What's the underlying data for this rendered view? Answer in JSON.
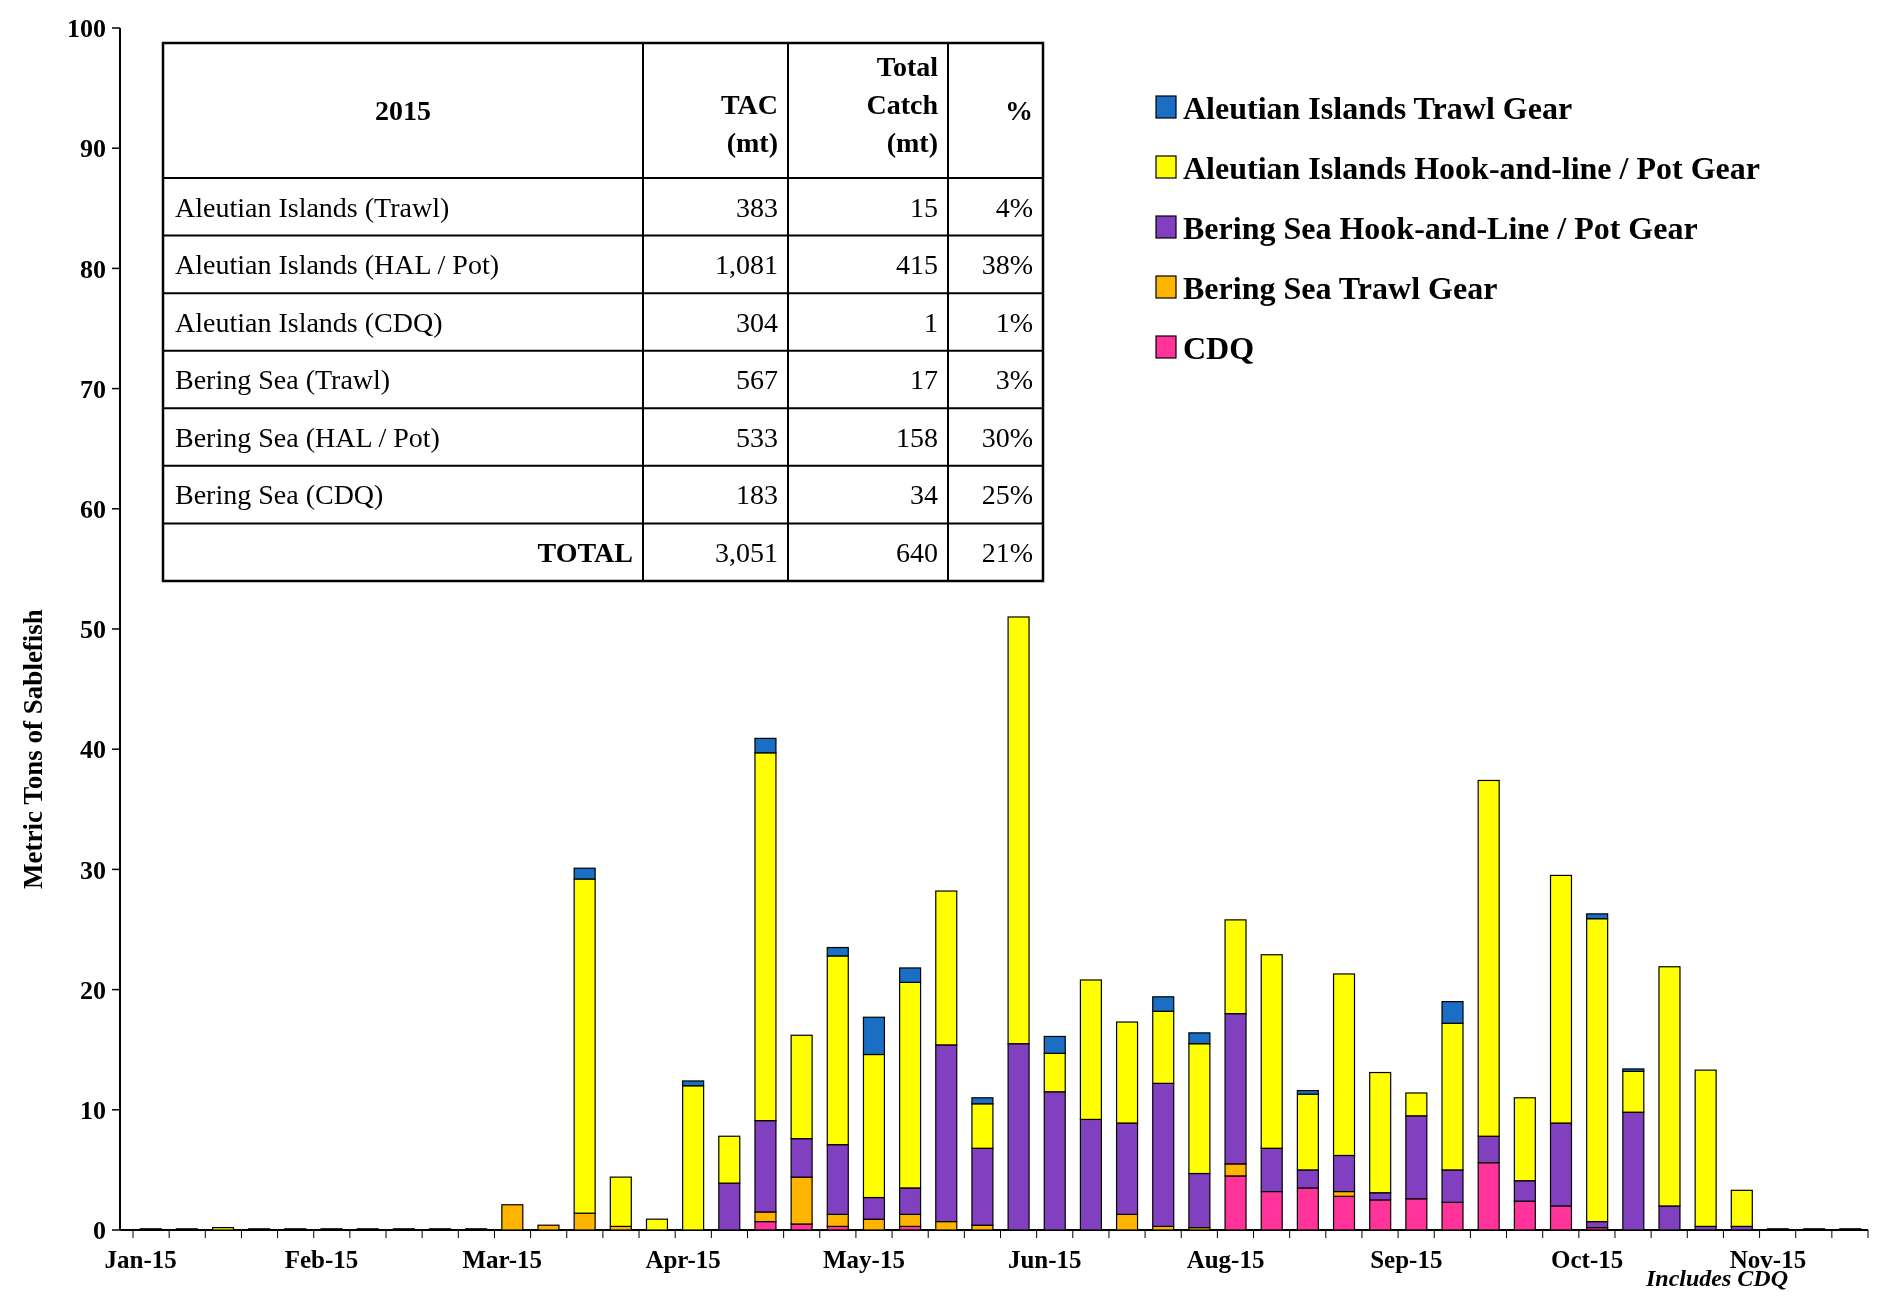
{
  "chart_data": [
    {
      "type": "bar",
      "stacked": true,
      "ylabel": "Metric Tons of Sablefish",
      "ylim": [
        0,
        100
      ],
      "yticks": [
        0,
        10,
        20,
        30,
        40,
        50,
        60,
        70,
        80,
        90,
        100
      ],
      "legend": "top right",
      "annotations": [
        "Includes CDQ"
      ],
      "categories": [
        "Jan-15",
        null,
        null,
        null,
        null,
        "Feb-15",
        null,
        null,
        null,
        null,
        "Mar-15",
        null,
        null,
        null,
        null,
        "Apr-15",
        null,
        null,
        null,
        null,
        "May-15",
        null,
        null,
        null,
        null,
        "Jun-15",
        null,
        null,
        null,
        null,
        "Aug-15",
        null,
        null,
        null,
        null,
        "Sep-15",
        null,
        null,
        null,
        null,
        "Oct-15",
        null,
        null,
        null,
        null,
        "Nov-15",
        null,
        null
      ],
      "series": [
        {
          "name": "CDQ",
          "color": "#ff3399",
          "values": [
            null,
            null,
            null,
            null,
            null,
            null,
            null,
            null,
            null,
            null,
            null,
            null,
            null,
            null,
            null,
            null,
            null,
            0.7,
            0.5,
            0.3,
            null,
            0.3,
            null,
            null,
            null,
            null,
            null,
            null,
            null,
            null,
            4.5,
            3.2,
            3.5,
            2.8,
            2.5,
            2.6,
            2.3,
            5.6,
            2.4,
            2.0,
            0.2,
            null,
            null,
            null,
            null,
            null,
            null,
            null
          ]
        },
        {
          "name": "Bering Sea Trawl Gear",
          "color": "#ffb400",
          "values": [
            null,
            null,
            null,
            null,
            null,
            null,
            0.1,
            0.1,
            null,
            0.1,
            2.1,
            0.4,
            1.4,
            0.3,
            null,
            null,
            null,
            0.8,
            3.9,
            1.0,
            0.9,
            1.0,
            0.7,
            0.4,
            null,
            null,
            null,
            1.3,
            0.3,
            0.2,
            1.0,
            null,
            null,
            0.4,
            null,
            null,
            null,
            null,
            null,
            null,
            null,
            null,
            null,
            null,
            null,
            null,
            null,
            null
          ]
        },
        {
          "name": "Bering Sea Hook-and-Line / Pot Gear",
          "color": "#8040c0",
          "values": [
            0.1,
            null,
            null,
            null,
            0.1,
            0.1,
            null,
            null,
            0.1,
            null,
            null,
            null,
            null,
            null,
            null,
            null,
            3.9,
            7.6,
            3.2,
            5.8,
            1.8,
            2.2,
            14.7,
            6.4,
            15.5,
            11.5,
            9.2,
            7.6,
            11.9,
            4.5,
            12.5,
            3.6,
            1.5,
            3.0,
            0.6,
            6.9,
            2.7,
            2.2,
            1.7,
            6.9,
            0.5,
            9.8,
            2.0,
            0.3,
            0.3,
            0.1,
            0.1,
            0.1
          ]
        },
        {
          "name": "Aleutian Islands Hook-and-line / Pot Gear",
          "color": "#ffff00",
          "values": [
            null,
            0.1,
            0.2,
            0.1,
            null,
            null,
            null,
            null,
            null,
            null,
            null,
            null,
            27.8,
            4.1,
            0.9,
            12.0,
            3.9,
            30.6,
            8.6,
            15.7,
            11.9,
            17.1,
            12.8,
            3.7,
            35.5,
            3.2,
            11.6,
            8.4,
            6.0,
            10.8,
            7.8,
            16.1,
            6.3,
            15.1,
            10.0,
            1.9,
            12.2,
            29.6,
            6.9,
            20.6,
            25.2,
            3.4,
            19.9,
            13.0,
            3.0,
            null,
            null,
            null
          ]
        },
        {
          "name": "Aleutian Islands Trawl Gear",
          "color": "#1a6fc4",
          "values": [
            null,
            null,
            null,
            null,
            null,
            null,
            null,
            null,
            null,
            null,
            null,
            null,
            0.9,
            null,
            null,
            0.4,
            null,
            1.2,
            null,
            0.7,
            3.1,
            1.2,
            null,
            0.5,
            null,
            1.4,
            null,
            null,
            1.2,
            0.9,
            null,
            null,
            0.3,
            null,
            null,
            null,
            1.8,
            null,
            null,
            null,
            0.4,
            0.2,
            null,
            null,
            null,
            null,
            null,
            null
          ]
        }
      ]
    },
    {
      "type": "other",
      "title": "2015",
      "categories": [
        "TAC (mt)",
        "Total Catch (mt)",
        "%"
      ],
      "y_categories": [
        "Aleutian Islands (Trawl)",
        "Aleutian Islands (HAL / Pot)",
        "Aleutian Islands (CDQ)",
        "Bering Sea (Trawl)",
        "Bering Sea (HAL / Pot)",
        "Bering Sea (CDQ)",
        "TOTAL"
      ],
      "cell_labels": [
        [
          "383",
          "15",
          "4%"
        ],
        [
          "1,081",
          "415",
          "38%"
        ],
        [
          "304",
          "1",
          "1%"
        ],
        [
          "567",
          "17",
          "3%"
        ],
        [
          "533",
          "158",
          "30%"
        ],
        [
          "183",
          "34",
          "25%"
        ],
        [
          "3,051",
          "640",
          "21%"
        ]
      ]
    }
  ]
}
